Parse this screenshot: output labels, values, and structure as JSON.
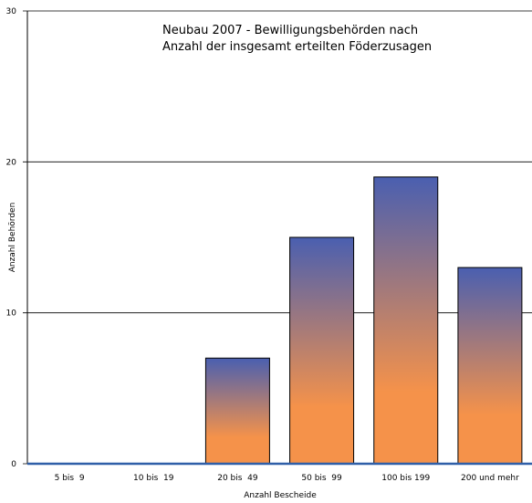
{
  "chart_data": {
    "type": "bar",
    "title": [
      "Neubau 2007 - Bewilligungsbehörden nach",
      "Anzahl der insgesamt erteilten Föderzusagen"
    ],
    "x_label": "Anzahl Bescheide",
    "y_label": "Anzahl Behörden",
    "categories": [
      "5 bis  9",
      "10 bis  19",
      "20 bis  49",
      "50 bis  99",
      "100 bis 199",
      "200 und mehr"
    ],
    "values": [
      0,
      0,
      7,
      15,
      19,
      13
    ],
    "gradient": [
      "#4a5fb0",
      "#f5924a"
    ],
    "ylim": [
      0,
      30
    ],
    "yticks": [
      0,
      10,
      20,
      30
    ],
    "grid": true
  }
}
